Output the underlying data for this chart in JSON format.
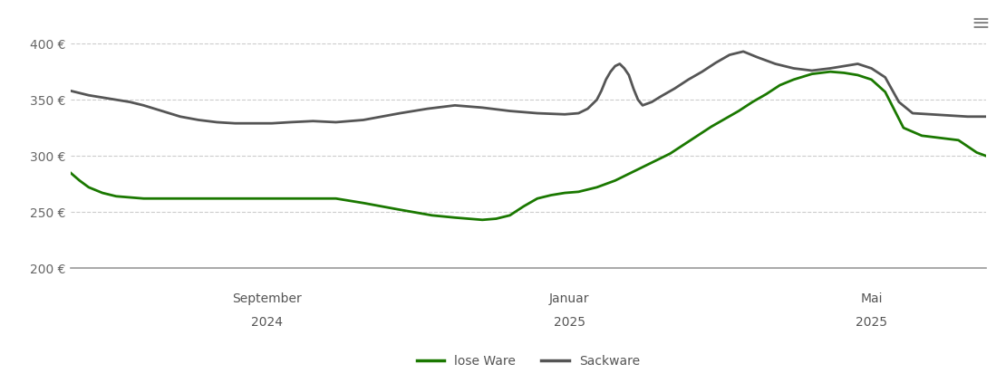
{
  "background_color": "#ffffff",
  "grid_color": "#cccccc",
  "line_color_lose": "#1a7800",
  "line_color_sack": "#555555",
  "line_width": 2.0,
  "legend_labels": [
    "lose Ware",
    "Sackware"
  ],
  "ylim": [
    200,
    415
  ],
  "yticks": [
    200,
    250,
    300,
    350,
    400
  ],
  "ytick_labels": [
    "200 €",
    "250 €",
    "300 €",
    "350 €",
    "400 €"
  ],
  "x_tick_positions": [
    0.215,
    0.545,
    0.875
  ],
  "x_tick_labels_top": [
    "September",
    "Januar",
    "Mai"
  ],
  "x_tick_labels_bot": [
    "2024",
    "2025",
    "2025"
  ],
  "lose_ware_x": [
    0.0,
    0.01,
    0.02,
    0.035,
    0.05,
    0.065,
    0.08,
    0.095,
    0.11,
    0.13,
    0.15,
    0.17,
    0.19,
    0.21,
    0.23,
    0.26,
    0.29,
    0.32,
    0.36,
    0.395,
    0.42,
    0.435,
    0.45,
    0.465,
    0.48,
    0.495,
    0.51,
    0.525,
    0.54,
    0.555,
    0.565,
    0.575,
    0.585,
    0.595,
    0.61,
    0.625,
    0.64,
    0.655,
    0.67,
    0.685,
    0.7,
    0.715,
    0.73,
    0.745,
    0.76,
    0.775,
    0.79,
    0.81,
    0.83,
    0.845,
    0.86,
    0.875,
    0.89,
    0.91,
    0.93,
    0.95,
    0.97,
    0.99,
    1.0
  ],
  "lose_ware_y": [
    285,
    278,
    272,
    267,
    264,
    263,
    262,
    262,
    262,
    262,
    262,
    262,
    262,
    262,
    262,
    262,
    262,
    258,
    252,
    247,
    245,
    244,
    243,
    244,
    247,
    255,
    262,
    265,
    267,
    268,
    270,
    272,
    275,
    278,
    284,
    290,
    296,
    302,
    310,
    318,
    326,
    333,
    340,
    348,
    355,
    363,
    368,
    373,
    375,
    374,
    372,
    368,
    357,
    325,
    318,
    316,
    314,
    303,
    300
  ],
  "sack_ware_x": [
    0.0,
    0.01,
    0.02,
    0.035,
    0.05,
    0.065,
    0.08,
    0.1,
    0.12,
    0.14,
    0.16,
    0.18,
    0.2,
    0.22,
    0.24,
    0.265,
    0.29,
    0.32,
    0.36,
    0.39,
    0.42,
    0.45,
    0.48,
    0.51,
    0.54,
    0.555,
    0.565,
    0.575,
    0.58,
    0.585,
    0.59,
    0.595,
    0.6,
    0.605,
    0.61,
    0.615,
    0.62,
    0.625,
    0.635,
    0.645,
    0.66,
    0.675,
    0.69,
    0.705,
    0.72,
    0.735,
    0.75,
    0.77,
    0.79,
    0.81,
    0.83,
    0.845,
    0.86,
    0.875,
    0.89,
    0.905,
    0.92,
    0.94,
    0.96,
    0.98,
    1.0
  ],
  "sack_ware_y": [
    358,
    356,
    354,
    352,
    350,
    348,
    345,
    340,
    335,
    332,
    330,
    329,
    329,
    329,
    330,
    331,
    330,
    332,
    338,
    342,
    345,
    343,
    340,
    338,
    337,
    338,
    342,
    350,
    358,
    368,
    375,
    380,
    382,
    378,
    372,
    360,
    350,
    345,
    348,
    353,
    360,
    368,
    375,
    383,
    390,
    393,
    388,
    382,
    378,
    376,
    378,
    380,
    382,
    378,
    370,
    348,
    338,
    337,
    336,
    335,
    335
  ]
}
